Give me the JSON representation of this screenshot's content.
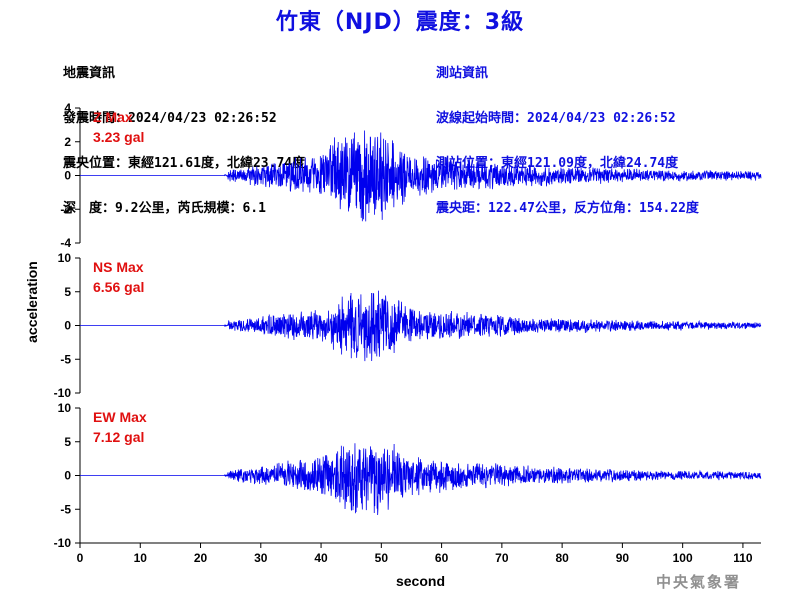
{
  "header": {
    "title": "竹東（NJD）震度：3級"
  },
  "quake_info": {
    "heading": "地震資訊",
    "origin_time": "發震時間：2024/04/23 02:26:52",
    "epicenter": "震央位置：東經121.61度，北緯23.74度",
    "depth_magnitude": "深　度：9.2公里，芮氏規模：6.1"
  },
  "station_info": {
    "heading": "測站資訊",
    "wave_start": "波線起始時間：2024/04/23 02:26:52",
    "location": "測站位置：東經121.09度，北緯24.74度",
    "distance_azimuth": "震央距：122.47公里，反方位角：154.22度"
  },
  "watermark": "中央氣象署",
  "chart_data": {
    "type": "line",
    "xlabel": "second",
    "ylabel": "acceleration",
    "xlim": [
      0,
      113
    ],
    "xticks": [
      0,
      10,
      20,
      30,
      40,
      50,
      60,
      70,
      80,
      90,
      100,
      110
    ],
    "line_color": "#0000ee",
    "annotation_color": "#e01010",
    "grid": false,
    "envelope_description_seconds": {
      "quiet_until": 24.5,
      "peak_region": [
        40,
        54
      ],
      "decay_until": 113
    },
    "panels": [
      {
        "name": "Z",
        "max_label": "Z Max",
        "max_value": "3.23 gal",
        "peak": 3.23,
        "ylim": [
          -4,
          4
        ],
        "yticks": [
          -4,
          -2,
          0,
          2,
          4
        ],
        "seed": 11
      },
      {
        "name": "NS",
        "max_label": "NS Max",
        "max_value": "6.56 gal",
        "peak": 6.56,
        "ylim": [
          -10,
          10
        ],
        "yticks": [
          -10,
          -5,
          0,
          5,
          10
        ],
        "seed": 23
      },
      {
        "name": "EW",
        "max_label": "EW Max",
        "max_value": "7.12 gal",
        "peak": 7.12,
        "ylim": [
          -10,
          10
        ],
        "yticks": [
          -10,
          -5,
          0,
          5,
          10
        ],
        "seed": 37
      }
    ]
  }
}
